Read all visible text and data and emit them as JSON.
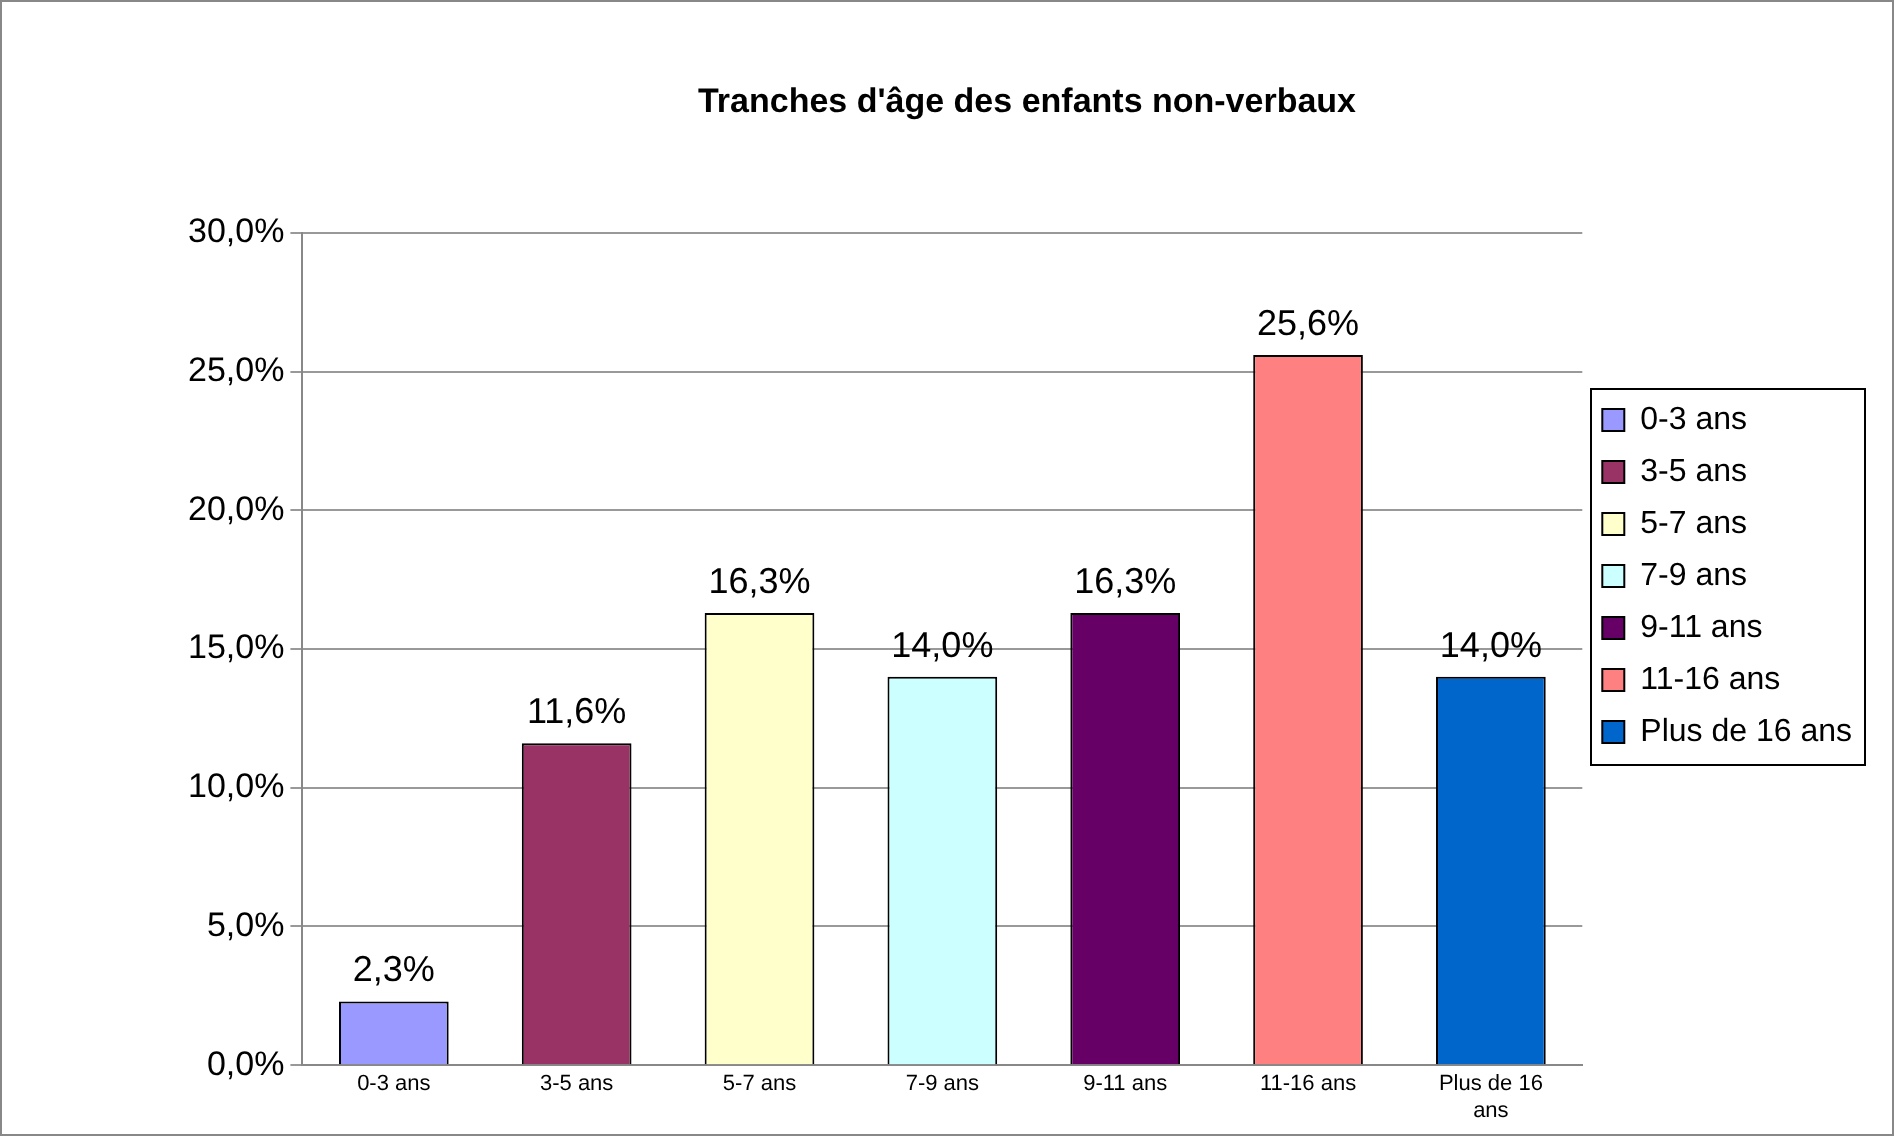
{
  "chart_data": {
    "type": "bar",
    "title": "Tranches d'âge des enfants non-verbaux",
    "categories": [
      "0-3 ans",
      "3-5 ans",
      "5-7 ans",
      "7-9 ans",
      "9-11 ans",
      "11-16 ans",
      "Plus de 16 ans"
    ],
    "series": [
      {
        "name": "0-3 ans",
        "color": "#9999ff",
        "values": [
          2.3,
          null,
          null,
          null,
          null,
          null,
          null
        ],
        "value_labels": [
          "2,3%",
          null,
          null,
          null,
          null,
          null,
          null
        ]
      },
      {
        "name": "3-5 ans",
        "color": "#993366",
        "values": [
          null,
          11.6,
          null,
          null,
          null,
          null,
          null
        ],
        "value_labels": [
          null,
          "11,6%",
          null,
          null,
          null,
          null,
          null
        ]
      },
      {
        "name": "5-7 ans",
        "color": "#ffffcc",
        "values": [
          null,
          null,
          16.3,
          null,
          null,
          null,
          null
        ],
        "value_labels": [
          null,
          null,
          "16,3%",
          null,
          null,
          null,
          null
        ]
      },
      {
        "name": "7-9 ans",
        "color": "#ccffff",
        "values": [
          null,
          null,
          null,
          14.0,
          null,
          null,
          null
        ],
        "value_labels": [
          null,
          null,
          null,
          "14,0%",
          null,
          null,
          null
        ]
      },
      {
        "name": "9-11 ans",
        "color": "#660066",
        "values": [
          null,
          null,
          null,
          null,
          16.3,
          null,
          null
        ],
        "value_labels": [
          null,
          null,
          null,
          null,
          "16,3%",
          null,
          null
        ]
      },
      {
        "name": "11-16 ans",
        "color": "#ff8080",
        "values": [
          null,
          null,
          null,
          null,
          null,
          25.6,
          null
        ],
        "value_labels": [
          null,
          null,
          null,
          null,
          null,
          "25,6%",
          null
        ]
      },
      {
        "name": "Plus de 16 ans",
        "color": "#0066cc",
        "values": [
          null,
          null,
          null,
          null,
          null,
          null,
          14.0
        ],
        "value_labels": [
          null,
          null,
          null,
          null,
          null,
          null,
          "14,0%"
        ]
      }
    ],
    "ylim": [
      0,
      30
    ],
    "yticks": [
      {
        "value": 0,
        "label": "0,0%"
      },
      {
        "value": 5,
        "label": "5,0%"
      },
      {
        "value": 10,
        "label": "10,0%"
      },
      {
        "value": 15,
        "label": "15,0%"
      },
      {
        "value": 20,
        "label": "20,0%"
      },
      {
        "value": 25,
        "label": "25,0%"
      },
      {
        "value": 30,
        "label": "30,0%"
      }
    ],
    "grid": "y",
    "legend": "right"
  }
}
